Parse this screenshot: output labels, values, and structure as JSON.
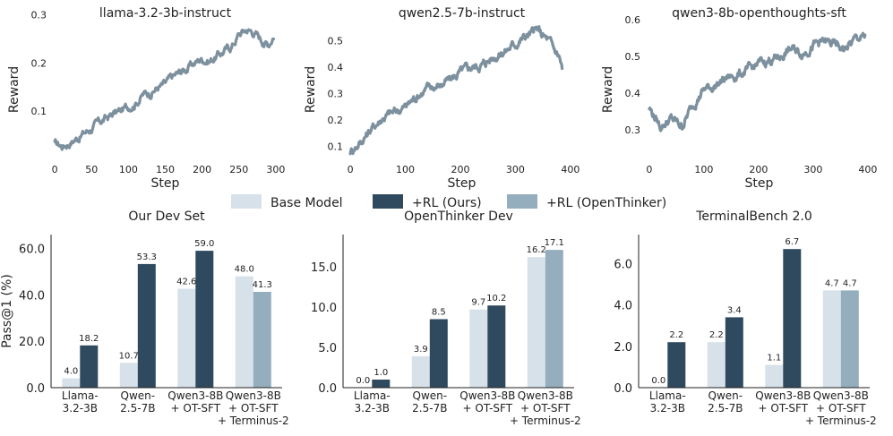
{
  "colors": {
    "line": "#7c909e",
    "base": "#d7e1ea",
    "rl_ours": "#2f4a5f",
    "rl_openthinker": "#94aebe",
    "axis": "#222222"
  },
  "legend": {
    "labels": [
      "Base Model",
      "+RL (Ours)",
      "+RL (OpenThinker)"
    ],
    "placement": "center, between rows"
  },
  "chart_data": [
    {
      "type": "line",
      "title": "llama-3.2-3b-instruct",
      "xlabel": "Step",
      "ylabel": "Reward",
      "xlim": [
        -5,
        305
      ],
      "ylim": [
        0.0,
        0.29
      ],
      "xticks": [
        0,
        50,
        100,
        150,
        200,
        250,
        300
      ],
      "yticks": [
        0.1,
        0.2,
        0.3
      ],
      "x": [
        0,
        10,
        20,
        30,
        40,
        50,
        60,
        70,
        80,
        90,
        100,
        110,
        120,
        130,
        140,
        150,
        160,
        170,
        180,
        190,
        200,
        210,
        220,
        230,
        240,
        250,
        260,
        270,
        280,
        290,
        297
      ],
      "y": [
        0.032,
        0.028,
        0.036,
        0.045,
        0.055,
        0.065,
        0.075,
        0.085,
        0.095,
        0.1,
        0.11,
        0.12,
        0.135,
        0.14,
        0.15,
        0.155,
        0.17,
        0.18,
        0.19,
        0.2,
        0.21,
        0.205,
        0.215,
        0.225,
        0.235,
        0.26,
        0.27,
        0.265,
        0.25,
        0.24,
        0.26
      ]
    },
    {
      "type": "line",
      "title": "qwen2.5-7b-instruct",
      "xlabel": "Step",
      "ylabel": "Reward",
      "xlim": [
        -5,
        410
      ],
      "ylim": [
        0.05,
        0.58
      ],
      "xticks": [
        0,
        100,
        200,
        300,
        400
      ],
      "yticks": [
        0.1,
        0.2,
        0.3,
        0.4,
        0.5
      ],
      "x": [
        0,
        20,
        40,
        60,
        80,
        100,
        120,
        140,
        160,
        180,
        200,
        220,
        240,
        260,
        280,
        300,
        320,
        340,
        360,
        380,
        385
      ],
      "y": [
        0.08,
        0.12,
        0.17,
        0.21,
        0.23,
        0.25,
        0.29,
        0.32,
        0.33,
        0.35,
        0.38,
        0.4,
        0.41,
        0.44,
        0.46,
        0.49,
        0.52,
        0.54,
        0.5,
        0.44,
        0.39
      ]
    },
    {
      "type": "line",
      "title": "qwen3-8b-openthoughts-sft",
      "xlabel": "Step",
      "ylabel": "Reward",
      "xlim": [
        -8,
        410
      ],
      "ylim": [
        0.22,
        0.6
      ],
      "xticks": [
        0,
        100,
        200,
        300,
        400
      ],
      "yticks": [
        0.3,
        0.4,
        0.5,
        0.6
      ],
      "x": [
        0,
        20,
        40,
        60,
        80,
        100,
        120,
        140,
        160,
        180,
        200,
        220,
        240,
        260,
        280,
        300,
        320,
        340,
        360,
        380,
        395
      ],
      "y": [
        0.36,
        0.31,
        0.33,
        0.31,
        0.37,
        0.41,
        0.42,
        0.44,
        0.45,
        0.46,
        0.48,
        0.49,
        0.5,
        0.52,
        0.51,
        0.53,
        0.54,
        0.53,
        0.52,
        0.55,
        0.55
      ]
    },
    {
      "type": "bar",
      "title": "Our Dev Set",
      "ylabel": "Pass@1 (%)",
      "ylim": [
        0,
        66
      ],
      "yticks": [
        0.0,
        20.0,
        40.0,
        60.0
      ],
      "categories": [
        "Llama-\n3.2-3B",
        "Qwen-\n2.5-7B",
        "Qwen3-8B\n+ OT-SFT",
        "Qwen3-8B\n+ OT-SFT\n+ Terminus-2"
      ],
      "series": [
        {
          "name": "Base Model",
          "values": [
            4.0,
            10.7,
            42.6,
            48.0
          ]
        },
        {
          "name": "+RL (Ours)",
          "values": [
            18.2,
            53.3,
            59.0,
            null
          ]
        },
        {
          "name": "+RL (OpenThinker)",
          "values": [
            null,
            null,
            null,
            41.3
          ]
        }
      ]
    },
    {
      "type": "bar",
      "title": "OpenThinker Dev",
      "ylabel": "",
      "ylim": [
        0,
        19
      ],
      "yticks": [
        0.0,
        5.0,
        10.0,
        15.0
      ],
      "categories": [
        "Llama-\n3.2-3B",
        "Qwen-\n2.5-7B",
        "Qwen3-8B\n+ OT-SFT",
        "Qwen3-8B\n+ OT-SFT\n+ Terminus-2"
      ],
      "series": [
        {
          "name": "Base Model",
          "values": [
            0.0,
            3.9,
            9.7,
            16.2
          ]
        },
        {
          "name": "+RL (Ours)",
          "values": [
            1.0,
            8.5,
            10.2,
            null
          ]
        },
        {
          "name": "+RL (OpenThinker)",
          "values": [
            null,
            null,
            null,
            17.1
          ]
        }
      ]
    },
    {
      "type": "bar",
      "title": "TerminalBench 2.0",
      "ylabel": "",
      "ylim": [
        0,
        7.4
      ],
      "yticks": [
        0.0,
        2.0,
        4.0,
        6.0
      ],
      "categories": [
        "Llama-\n3.2-3B",
        "Qwen-\n2.5-7B",
        "Qwen3-8B\n+ OT-SFT",
        "Qwen3-8B\n+ OT-SFT\n+ Terminus-2"
      ],
      "series": [
        {
          "name": "Base Model",
          "values": [
            0.0,
            2.2,
            1.1,
            4.7
          ]
        },
        {
          "name": "+RL (Ours)",
          "values": [
            2.2,
            3.4,
            6.7,
            null
          ]
        },
        {
          "name": "+RL (OpenThinker)",
          "values": [
            null,
            null,
            null,
            4.7
          ]
        }
      ]
    }
  ]
}
